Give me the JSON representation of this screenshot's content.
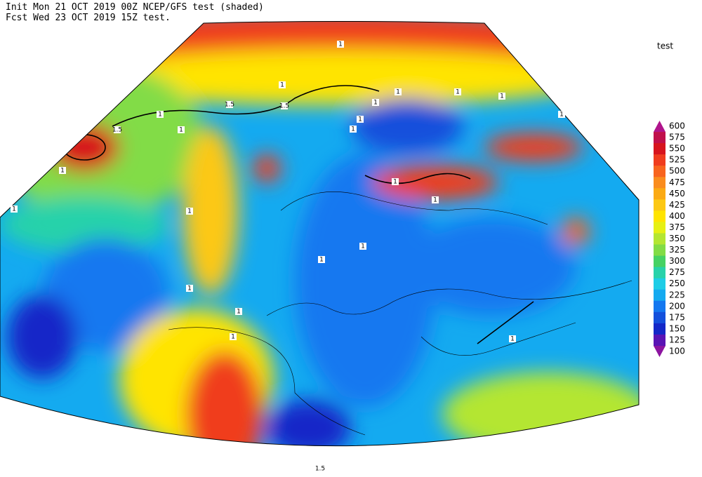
{
  "header": {
    "line1": "Init  Mon 21 OCT 2019 00Z  NCEP/GFS test (shaded)",
    "line2": "Fcst Wed 23 OCT 2019 15Z  test."
  },
  "legend": {
    "title": "test",
    "levels": [
      {
        "value": 600,
        "color": "#b0148c"
      },
      {
        "value": 575,
        "color": "#c0104c"
      },
      {
        "value": 550,
        "color": "#d7141e"
      },
      {
        "value": 525,
        "color": "#f03c1e"
      },
      {
        "value": 500,
        "color": "#f8641e"
      },
      {
        "value": 475,
        "color": "#fa8c1e"
      },
      {
        "value": 450,
        "color": "#fbaa14"
      },
      {
        "value": 425,
        "color": "#fcc814"
      },
      {
        "value": 400,
        "color": "#ffe400"
      },
      {
        "value": 375,
        "color": "#e6f014"
      },
      {
        "value": 350,
        "color": "#b4e632"
      },
      {
        "value": 325,
        "color": "#82dc46"
      },
      {
        "value": 300,
        "color": "#46d264"
      },
      {
        "value": 275,
        "color": "#28d2aa"
      },
      {
        "value": 250,
        "color": "#1ecde6"
      },
      {
        "value": 225,
        "color": "#14aaf0"
      },
      {
        "value": 200,
        "color": "#1478f0"
      },
      {
        "value": 175,
        "color": "#1450dc"
      },
      {
        "value": 150,
        "color": "#1428c8"
      },
      {
        "value": 125,
        "color": "#5a14b4"
      },
      {
        "value": 100,
        "color": "#8c14a0"
      }
    ]
  },
  "contour_labels": [
    "1",
    "1",
    "1",
    "1",
    "1",
    "1.5",
    "1.5",
    "1.5",
    "1",
    "1",
    "1",
    "1",
    "1",
    "1",
    "1",
    "1",
    "1",
    "1",
    "1",
    "1",
    "1",
    "1",
    "1",
    "1",
    "1",
    "1.5"
  ]
}
